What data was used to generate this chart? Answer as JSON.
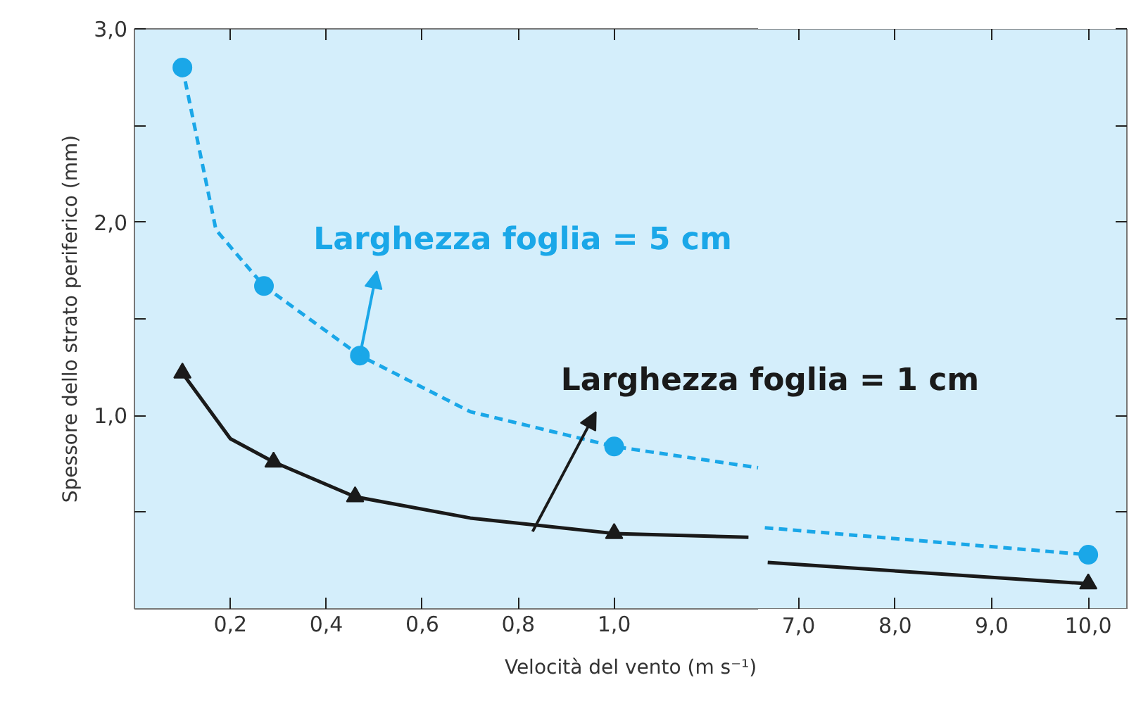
{
  "chart_data": [
    {
      "type": "line",
      "xlabel": "Velocità del vento (m s⁻¹)",
      "ylabel": "Spessore dello strato periferico (mm)",
      "xlim": [
        0,
        1.3
      ],
      "ylim": [
        0,
        3
      ],
      "xticks": [
        {
          "value": 0.2,
          "label": "0,2"
        },
        {
          "value": 0.4,
          "label": "0,4"
        },
        {
          "value": 0.6,
          "label": "0,6"
        },
        {
          "value": 0.8,
          "label": "0,8"
        },
        {
          "value": 1.0,
          "label": "1,0"
        }
      ],
      "yticks": [
        {
          "value": 0.5,
          "label": null
        },
        {
          "value": 1.0,
          "label": "1,0"
        },
        {
          "value": 1.5,
          "label": null
        },
        {
          "value": 2.0,
          "label": "2,0"
        },
        {
          "value": 2.5,
          "label": null
        },
        {
          "value": 3.0,
          "label": "3,0"
        }
      ],
      "series": [
        {
          "color": "#1aa7e8",
          "line_style": "dashed",
          "marker": "none",
          "x": [
            0.1,
            0.17,
            0.27,
            0.47,
            0.7,
            1.0,
            1.3
          ],
          "values": [
            2.8,
            1.96,
            1.67,
            1.31,
            1.02,
            0.84,
            0.73
          ]
        },
        {
          "color": "#1a1a1a",
          "line_style": "solid",
          "marker": "none",
          "x": [
            0.1,
            0.2,
            0.29,
            0.46,
            0.7,
            1.0,
            1.28
          ],
          "values": [
            1.22,
            0.88,
            0.76,
            0.58,
            0.47,
            0.39,
            0.37
          ]
        },
        {
          "type": "scatter",
          "color": "#1aa7e8",
          "marker": "circle",
          "x": [
            0.1,
            0.27,
            0.47,
            1.0
          ],
          "values": [
            2.8,
            1.67,
            1.31,
            0.84
          ]
        },
        {
          "type": "scatter",
          "color": "#1a1a1a",
          "marker": "triangle",
          "x": [
            0.1,
            0.29,
            0.46,
            1.0
          ],
          "values": [
            1.22,
            0.76,
            0.58,
            0.39
          ]
        }
      ],
      "annotations": [
        {
          "text": "Larghezza foglia = 5 cm",
          "x": 0.47,
          "y": 1.31
        },
        {
          "text": "Larghezza foglia = 1 cm",
          "x": 0.83,
          "y": 0.4
        }
      ]
    },
    {
      "type": "line",
      "xlim": [
        6.58,
        10.4
      ],
      "ylim": [
        0,
        3
      ],
      "tick_labels": "x",
      "xticks": [
        {
          "value": 7,
          "label": "7,0"
        },
        {
          "value": 8,
          "label": "8,0"
        },
        {
          "value": 9,
          "label": "9,0"
        },
        {
          "value": 10,
          "label": "10,0"
        }
      ],
      "yticks": [
        0.5,
        1.0,
        1.5,
        2.0,
        2.5,
        3.0
      ],
      "series": [
        {
          "color": "#1aa7e8",
          "line_style": "dashed",
          "marker": "none",
          "x": [
            6.65,
            10.0
          ],
          "values": [
            0.42,
            0.28
          ]
        },
        {
          "color": "#1a1a1a",
          "line_style": "solid",
          "marker": "none",
          "x": [
            6.68,
            10.0
          ],
          "values": [
            0.24,
            0.13
          ]
        },
        {
          "type": "scatter",
          "color": "#1aa7e8",
          "marker": "circle",
          "x": [
            10.0
          ],
          "values": [
            0.28
          ]
        },
        {
          "type": "scatter",
          "color": "#1a1a1a",
          "marker": "triangle",
          "x": [
            10.0
          ],
          "values": [
            0.13
          ]
        }
      ]
    }
  ]
}
